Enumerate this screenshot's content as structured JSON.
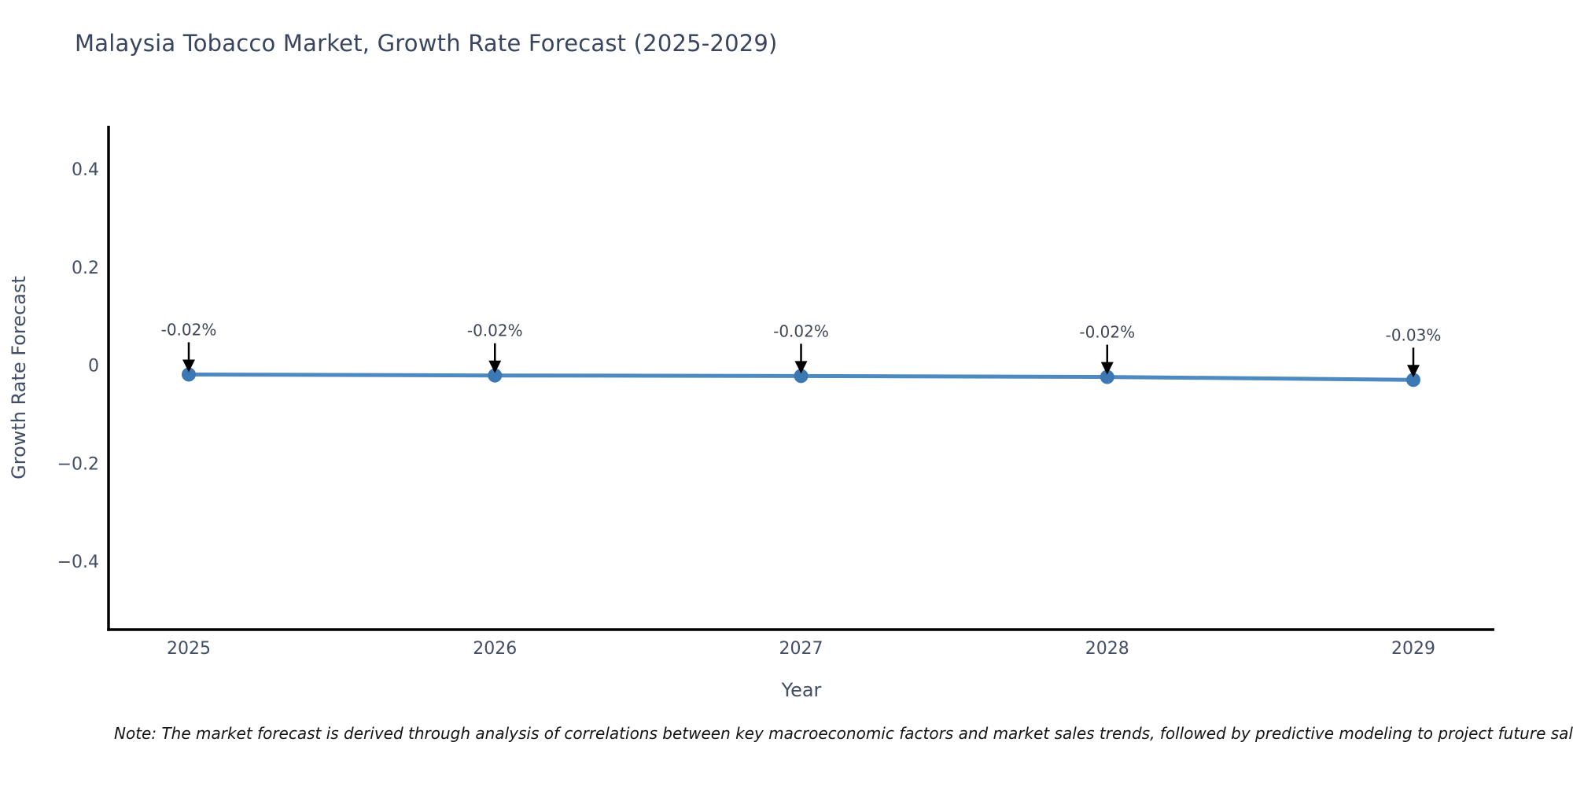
{
  "title": "Malaysia Tobacco Market, Growth Rate Forecast (2025-2029)",
  "note": "Note: The market forecast is derived through analysis of correlations between key macroeconomic factors and market sales trends, followed by predictive modeling to project future sales.",
  "chart_data": {
    "type": "line",
    "title": "Malaysia Tobacco Market, Growth Rate Forecast (2025-2029)",
    "xlabel": "Year",
    "ylabel": "Growth Rate Forecast",
    "categories": [
      "2025",
      "2026",
      "2027",
      "2028",
      "2029"
    ],
    "series": [
      {
        "name": "Growth Rate Forecast",
        "values": [
          -0.019,
          -0.021,
          -0.022,
          -0.024,
          -0.03
        ],
        "point_labels": [
          "-0.02%",
          "-0.02%",
          "-0.02%",
          "-0.02%",
          "-0.03%"
        ]
      }
    ],
    "ytick_values": [
      0.4,
      0.2,
      0,
      -0.2,
      -0.4
    ],
    "ytick_labels": [
      "0.4",
      "0.2",
      "0",
      "−0.2",
      "−0.4"
    ],
    "ylim": [
      -0.539,
      0.488
    ],
    "grid": false,
    "legend_position": "none",
    "colors": {
      "line": "#4d8ac0",
      "marker": "#3c78b4",
      "annotation_text": "#3d4656",
      "annotation_arrow": "#000000",
      "axis_spine": "#000000",
      "tick_label": "#424e66",
      "axis_label": "#424e66"
    }
  }
}
